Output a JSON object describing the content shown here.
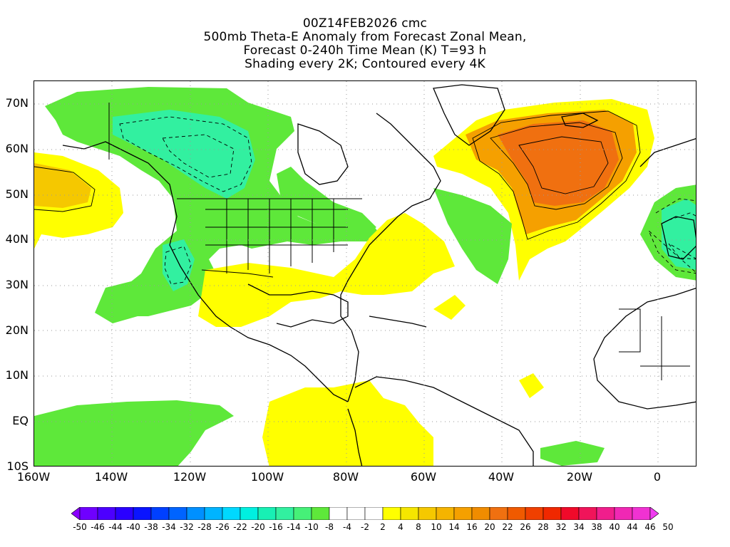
{
  "title": {
    "line1": "00Z14FEB2026 cmc",
    "line2": "500mb Theta-E Anomaly from Forecast Zonal Mean,",
    "line3": "Forecast 0-240h Time Mean (K) T=93 h",
    "line4": "Shading every 2K; Contoured every 4K"
  },
  "map": {
    "projection": "cylindrical equidistant",
    "lon_range": [
      -160,
      10
    ],
    "lat_range": [
      -10,
      75
    ],
    "lat_labels": [
      "70N",
      "60N",
      "50N",
      "40N",
      "30N",
      "20N",
      "10N",
      "EQ",
      "10S"
    ],
    "lon_labels": [
      "160W",
      "140W",
      "120W",
      "100W",
      "80W",
      "60W",
      "40W",
      "20W",
      "0"
    ],
    "gridlines": "dotted",
    "regions": [
      {
        "name": "Alaska-Canada negative anomaly",
        "category": "-10 to -4",
        "color": "#5ee83a"
      },
      {
        "name": "Western Canada core",
        "category": "-16 to -14",
        "color": "#32f0a0"
      },
      {
        "name": "US Southwest low",
        "category": "-16 to -14",
        "color": "#32f0a0"
      },
      {
        "name": "Iberia negative anomaly",
        "category": "-16 to -14",
        "color": "#32f0a0"
      },
      {
        "name": "North Atlantic positive anomaly",
        "category": "20 to 22",
        "color": "#f07010"
      },
      {
        "name": "North Pacific positive anomaly",
        "category": "8 to 10",
        "color": "#f5c800"
      },
      {
        "name": "Gulf of Mexico warm band",
        "category": "4 to 8",
        "color": "#ffff00"
      },
      {
        "name": "South America warm patches",
        "category": "4 to 8",
        "color": "#ffff00"
      },
      {
        "name": "Equatorial Pacific negative anomaly",
        "category": "-8 to -4",
        "color": "#5ee83a"
      }
    ]
  },
  "colorbar": {
    "labels": [
      "-50",
      "-46",
      "-44",
      "-40",
      "-38",
      "-34",
      "-32",
      "-28",
      "-26",
      "-22",
      "-20",
      "-16",
      "-14",
      "-10",
      "-8",
      "-4",
      "-2",
      "2",
      "4",
      "8",
      "10",
      "14",
      "16",
      "20",
      "22",
      "26",
      "28",
      "32",
      "34",
      "38",
      "40",
      "44",
      "46",
      "50"
    ],
    "colors": [
      "#8a00ff",
      "#6f00ff",
      "#4c00ff",
      "#2a00ff",
      "#0a14ff",
      "#0040ff",
      "#0064ff",
      "#0090ff",
      "#00b4ff",
      "#00d8ff",
      "#00f0e0",
      "#18f0b4",
      "#32f0a0",
      "#46f078",
      "#5ee83a",
      "#ffffff",
      "#ffffff",
      "#ffffff",
      "#ffff00",
      "#f5e600",
      "#f5c800",
      "#f5b400",
      "#f5a000",
      "#f08c00",
      "#f07010",
      "#f05a00",
      "#f04000",
      "#f02800",
      "#f00a2a",
      "#f0145a",
      "#f01e8c",
      "#f028b4",
      "#f032d2",
      "#f03cf0"
    ]
  }
}
